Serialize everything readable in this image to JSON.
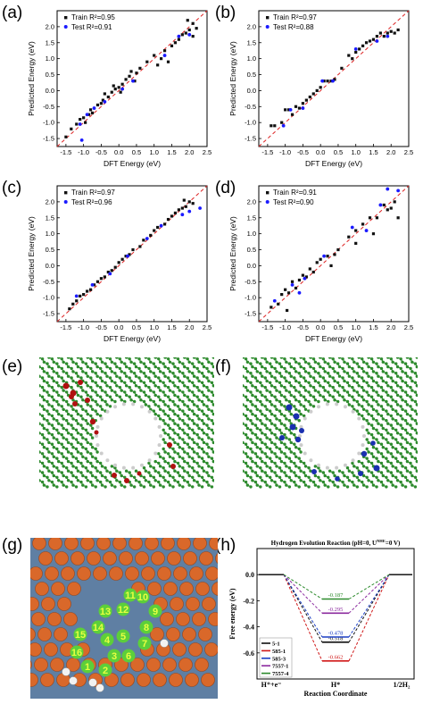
{
  "panels": {
    "a": "(a)",
    "b": "(b)",
    "c": "(c)",
    "d": "(d)",
    "e": "(e)",
    "f": "(f)",
    "g": "(g)",
    "h": "(h)"
  },
  "colors": {
    "train": "#111111",
    "test": "#1a1aff",
    "diag": "#dd2222",
    "carbon": "#2e8b2e",
    "hydrogen": "#cccccc",
    "defect_e": "#b01010",
    "defect_f": "#1a2fb0",
    "ball": "#d9682a",
    "ring": "#5ccf3a",
    "bg_g": "#5f7fa3"
  },
  "chart_data": [
    {
      "type": "scatter",
      "panel": "(a)",
      "xlabel": "DFT Energy (eV)",
      "ylabel": "Predicted Energy (eV)",
      "xlim": [
        -1.75,
        2.5
      ],
      "ylim": [
        -1.75,
        2.5
      ],
      "xticks": [
        "-1.5",
        "-1.0",
        "-0.5",
        "0.0",
        "0.5",
        "1.0",
        "1.5",
        "2.0",
        "2.5"
      ],
      "yticks": [
        "-1.5",
        "-1.0",
        "-0.5",
        "0.0",
        "0.5",
        "1.0",
        "1.5",
        "2.0"
      ],
      "legend": [
        "Train R²=0.95",
        "Test R²=0.91"
      ],
      "train": [
        [
          -1.5,
          -1.45
        ],
        [
          -1.35,
          -1.2
        ],
        [
          -1.2,
          -1.05
        ],
        [
          -1.1,
          -0.9
        ],
        [
          -1.0,
          -0.85
        ],
        [
          -0.95,
          -1.0
        ],
        [
          -0.85,
          -0.75
        ],
        [
          -0.8,
          -0.6
        ],
        [
          -0.75,
          -0.7
        ],
        [
          -0.6,
          -0.45
        ],
        [
          -0.5,
          -0.4
        ],
        [
          -0.45,
          -0.3
        ],
        [
          -0.4,
          -0.1
        ],
        [
          -0.3,
          -0.2
        ],
        [
          -0.2,
          -0.05
        ],
        [
          -0.1,
          0.05
        ],
        [
          0.0,
          0.1
        ],
        [
          0.1,
          0.2
        ],
        [
          0.2,
          0.35
        ],
        [
          0.3,
          0.45
        ],
        [
          0.35,
          0.6
        ],
        [
          0.45,
          0.3
        ],
        [
          0.5,
          0.55
        ],
        [
          0.6,
          0.7
        ],
        [
          0.8,
          0.9
        ],
        [
          1.0,
          1.1
        ],
        [
          1.1,
          0.8
        ],
        [
          1.2,
          1.0
        ],
        [
          1.3,
          1.25
        ],
        [
          1.4,
          0.9
        ],
        [
          1.5,
          1.4
        ],
        [
          1.6,
          1.5
        ],
        [
          1.7,
          1.6
        ],
        [
          1.8,
          1.75
        ],
        [
          1.9,
          1.8
        ],
        [
          2.0,
          1.9
        ],
        [
          2.1,
          1.7
        ],
        [
          2.1,
          2.1
        ],
        [
          2.2,
          1.95
        ],
        [
          1.95,
          2.2
        ],
        [
          -0.15,
          0.15
        ],
        [
          0.05,
          -0.05
        ]
      ],
      "test": [
        [
          -1.1,
          -1.05
        ],
        [
          -0.9,
          -0.75
        ],
        [
          -0.7,
          -0.55
        ],
        [
          -0.4,
          -0.35
        ],
        [
          0.1,
          0.05
        ],
        [
          0.4,
          0.3
        ],
        [
          1.3,
          1.1
        ],
        [
          1.7,
          1.7
        ],
        [
          2.0,
          1.75
        ],
        [
          -1.05,
          -1.55
        ]
      ]
    },
    {
      "type": "scatter",
      "panel": "(b)",
      "xlabel": "DFT Energy (eV)",
      "ylabel": "Predicted Energy (eV)",
      "xlim": [
        -1.75,
        2.5
      ],
      "ylim": [
        -1.75,
        2.5
      ],
      "xticks": [
        "-1.5",
        "-1.0",
        "-0.5",
        "0.0",
        "0.5",
        "1.0",
        "1.5",
        "2.0",
        "2.5"
      ],
      "yticks": [
        "-1.5",
        "-1.0",
        "-0.5",
        "0.0",
        "0.5",
        "1.0",
        "1.5",
        "2.0"
      ],
      "legend": [
        "Train R²=0.97",
        "Test R²=0.88"
      ],
      "train": [
        [
          -1.4,
          -1.1
        ],
        [
          -1.3,
          -1.1
        ],
        [
          -1.1,
          -1.0
        ],
        [
          -1.0,
          -0.6
        ],
        [
          -0.9,
          -0.6
        ],
        [
          -0.8,
          -0.75
        ],
        [
          -0.7,
          -0.5
        ],
        [
          -0.6,
          -0.55
        ],
        [
          -0.5,
          -0.4
        ],
        [
          -0.4,
          -0.3
        ],
        [
          -0.3,
          -0.2
        ],
        [
          -0.2,
          -0.1
        ],
        [
          -0.1,
          0.0
        ],
        [
          0.0,
          0.1
        ],
        [
          0.1,
          0.3
        ],
        [
          0.2,
          0.3
        ],
        [
          0.3,
          0.3
        ],
        [
          0.4,
          0.35
        ],
        [
          0.6,
          0.7
        ],
        [
          0.8,
          1.1
        ],
        [
          0.9,
          1.0
        ],
        [
          1.0,
          1.2
        ],
        [
          1.1,
          1.3
        ],
        [
          1.2,
          1.4
        ],
        [
          1.3,
          1.5
        ],
        [
          1.4,
          1.55
        ],
        [
          1.5,
          1.6
        ],
        [
          1.6,
          1.7
        ],
        [
          1.7,
          1.8
        ],
        [
          1.8,
          1.7
        ],
        [
          1.9,
          1.8
        ],
        [
          2.0,
          1.85
        ],
        [
          2.1,
          1.8
        ],
        [
          2.2,
          1.9
        ]
      ],
      "test": [
        [
          -1.05,
          -1.1
        ],
        [
          -0.85,
          -0.6
        ],
        [
          -0.5,
          -0.55
        ],
        [
          0.05,
          0.3
        ],
        [
          0.35,
          0.3
        ],
        [
          1.0,
          1.3
        ],
        [
          1.6,
          1.55
        ],
        [
          1.9,
          1.7
        ]
      ]
    },
    {
      "type": "scatter",
      "panel": "(c)",
      "xlabel": "DFT Energy (eV)",
      "ylabel": "Predicted Energy (eV)",
      "xlim": [
        -1.75,
        2.5
      ],
      "ylim": [
        -1.75,
        2.5
      ],
      "xticks": [
        "-1.5",
        "-1.0",
        "-0.5",
        "0.0",
        "0.5",
        "1.0",
        "1.5",
        "2.0",
        "2.5"
      ],
      "yticks": [
        "-1.5",
        "-1.0",
        "-0.5",
        "0.0",
        "0.5",
        "1.0",
        "1.5",
        "2.0"
      ],
      "legend": [
        "Train R²=0.97",
        "Test R²=0.96"
      ],
      "train": [
        [
          -1.4,
          -1.35
        ],
        [
          -1.3,
          -1.2
        ],
        [
          -1.2,
          -1.1
        ],
        [
          -1.1,
          -0.95
        ],
        [
          -1.0,
          -0.9
        ],
        [
          -0.9,
          -0.8
        ],
        [
          -0.8,
          -0.75
        ],
        [
          -0.7,
          -0.6
        ],
        [
          -0.6,
          -0.5
        ],
        [
          -0.5,
          -0.4
        ],
        [
          -0.4,
          -0.35
        ],
        [
          -0.3,
          -0.2
        ],
        [
          -0.2,
          -0.15
        ],
        [
          -0.1,
          -0.05
        ],
        [
          0.0,
          0.1
        ],
        [
          0.1,
          0.2
        ],
        [
          0.2,
          0.3
        ],
        [
          0.3,
          0.35
        ],
        [
          0.4,
          0.5
        ],
        [
          0.6,
          0.6
        ],
        [
          0.7,
          0.8
        ],
        [
          0.9,
          0.95
        ],
        [
          1.0,
          1.1
        ],
        [
          1.1,
          1.2
        ],
        [
          1.3,
          1.3
        ],
        [
          1.4,
          1.45
        ],
        [
          1.5,
          1.55
        ],
        [
          1.6,
          1.65
        ],
        [
          1.7,
          1.75
        ],
        [
          1.8,
          1.8
        ],
        [
          1.9,
          1.85
        ],
        [
          2.0,
          2.0
        ],
        [
          2.1,
          1.95
        ],
        [
          1.85,
          2.05
        ]
      ],
      "test": [
        [
          -1.2,
          -0.95
        ],
        [
          -0.75,
          -0.6
        ],
        [
          -0.25,
          -0.25
        ],
        [
          0.25,
          0.3
        ],
        [
          0.8,
          0.85
        ],
        [
          1.2,
          1.25
        ],
        [
          1.8,
          1.6
        ],
        [
          2.3,
          1.8
        ],
        [
          2.0,
          1.7
        ]
      ]
    },
    {
      "type": "scatter",
      "panel": "(d)",
      "xlabel": "DFT Energy (eV)",
      "ylabel": "Predicted Energy (eV)",
      "xlim": [
        -1.75,
        2.5
      ],
      "ylim": [
        -1.75,
        2.5
      ],
      "xticks": [
        "-1.5",
        "-1.0",
        "-0.5",
        "0.0",
        "0.5",
        "1.0",
        "1.5",
        "2.0",
        "2.5"
      ],
      "yticks": [
        "-1.5",
        "-1.0",
        "-0.5",
        "0.0",
        "0.5",
        "1.0",
        "1.5",
        "2.0"
      ],
      "legend": [
        "Train R²=0.91",
        "Test R²=0.90"
      ],
      "train": [
        [
          -1.4,
          -1.3
        ],
        [
          -1.2,
          -1.2
        ],
        [
          -1.1,
          -0.9
        ],
        [
          -1.0,
          -0.75
        ],
        [
          -0.95,
          -1.4
        ],
        [
          -0.9,
          -0.85
        ],
        [
          -0.8,
          -0.5
        ],
        [
          -0.7,
          -0.7
        ],
        [
          -0.6,
          -0.45
        ],
        [
          -0.5,
          -0.3
        ],
        [
          -0.4,
          -0.35
        ],
        [
          -0.3,
          -0.1
        ],
        [
          -0.2,
          -0.2
        ],
        [
          -0.1,
          0.1
        ],
        [
          0.0,
          0.2
        ],
        [
          0.2,
          0.3
        ],
        [
          0.3,
          0.0
        ],
        [
          0.4,
          0.35
        ],
        [
          0.5,
          0.5
        ],
        [
          0.8,
          0.9
        ],
        [
          1.0,
          1.1
        ],
        [
          1.2,
          1.3
        ],
        [
          1.4,
          1.5
        ],
        [
          1.5,
          1.0
        ],
        [
          1.6,
          1.5
        ],
        [
          1.8,
          1.9
        ],
        [
          1.9,
          1.75
        ],
        [
          2.0,
          1.8
        ],
        [
          2.1,
          2.0
        ],
        [
          2.2,
          1.5
        ],
        [
          1.0,
          0.7
        ]
      ],
      "test": [
        [
          -1.3,
          -1.1
        ],
        [
          -0.8,
          -0.6
        ],
        [
          -0.45,
          -0.4
        ],
        [
          0.1,
          0.3
        ],
        [
          0.9,
          1.2
        ],
        [
          1.3,
          1.1
        ],
        [
          1.7,
          1.9
        ],
        [
          1.9,
          2.4
        ],
        [
          2.2,
          2.35
        ],
        [
          -0.6,
          -0.85
        ]
      ]
    },
    {
      "type": "line",
      "panel": "(h)",
      "title": "Hydrogen Evolution Reaction (pH=0, U",
      "title_sup": "NHE",
      "title_end": "=0 V)",
      "xlabel": "Reaction Coordinate",
      "ylabel": "Free energy (eV)",
      "ylim": [
        -0.8,
        0.2
      ],
      "yticks": [
        "0.0",
        "-0.2",
        "-0.4",
        "-0.6"
      ],
      "categories": [
        "H⁺+e⁻",
        "H*",
        "1/2H₂"
      ],
      "series": [
        {
          "name": "5-1",
          "value": -0.518,
          "color": "#111111"
        },
        {
          "name": "585-1",
          "value": -0.662,
          "color": "#d01818"
        },
        {
          "name": "585-3",
          "value": -0.478,
          "color": "#1b3fc4"
        },
        {
          "name": "7557-1",
          "value": -0.295,
          "color": "#8b2a9e"
        },
        {
          "name": "7557-4",
          "value": -0.187,
          "color": "#2b8a2b"
        }
      ]
    }
  ]
}
